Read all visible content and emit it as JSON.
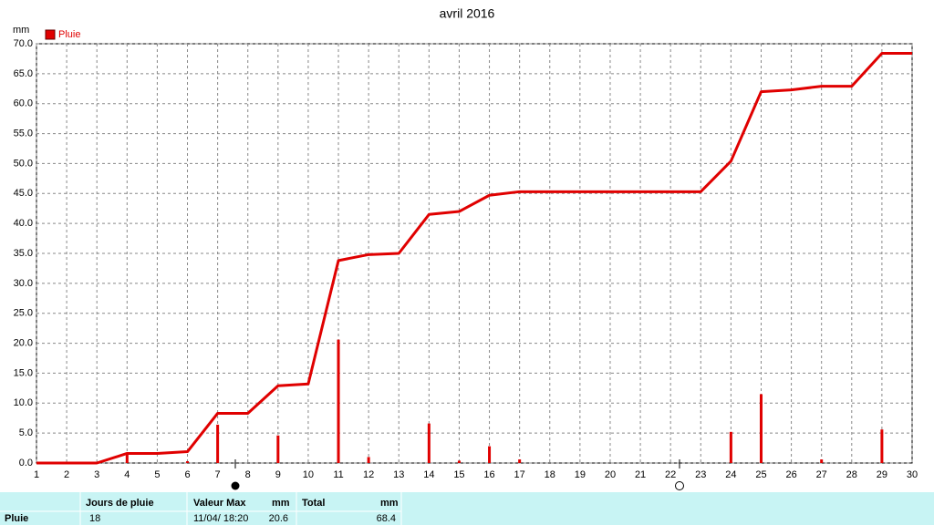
{
  "chart_data": {
    "type": "combo",
    "title": "avril 2016",
    "y_label": "mm",
    "xlim": [
      1,
      30
    ],
    "xticks": [
      1,
      2,
      3,
      4,
      5,
      6,
      7,
      8,
      9,
      10,
      11,
      12,
      13,
      14,
      15,
      16,
      17,
      18,
      19,
      20,
      21,
      22,
      23,
      24,
      25,
      26,
      27,
      28,
      29,
      30
    ],
    "ylim": [
      0,
      70
    ],
    "yticks": [
      {
        "value": 0,
        "label": "0.0"
      },
      {
        "value": 5,
        "label": "5.0"
      },
      {
        "value": 10,
        "label": "10.0"
      },
      {
        "value": 15,
        "label": "15.0"
      },
      {
        "value": 20,
        "label": "20.0"
      },
      {
        "value": 25,
        "label": "25.0"
      },
      {
        "value": 30,
        "label": "30.0"
      },
      {
        "value": 35,
        "label": "35.0"
      },
      {
        "value": 40,
        "label": "40.0"
      },
      {
        "value": 45,
        "label": "45.0"
      },
      {
        "value": 50,
        "label": "50.0"
      },
      {
        "value": 55,
        "label": "55.0"
      },
      {
        "value": 60,
        "label": "60.0"
      },
      {
        "value": 65,
        "label": "65.0"
      },
      {
        "value": 70,
        "label": "70.0"
      }
    ],
    "grid": true,
    "legend": "top-left",
    "series": [
      {
        "name": "Pluie",
        "type": "bar",
        "color": "#e00000",
        "x": [
          4,
          6,
          7,
          9,
          11,
          12,
          14,
          15,
          16,
          17,
          24,
          25,
          27,
          29
        ],
        "values": [
          1.6,
          0.3,
          6.4,
          4.6,
          20.6,
          1.0,
          6.6,
          0.4,
          2.8,
          0.6,
          5.2,
          11.5,
          0.6,
          5.6
        ]
      },
      {
        "type": "line",
        "color": "#e00000",
        "x": [
          1,
          3,
          4,
          5,
          6,
          7,
          8,
          9,
          10,
          11,
          12,
          13,
          14,
          15,
          16,
          17,
          23,
          24,
          25,
          26,
          27,
          28,
          29,
          30
        ],
        "values": [
          0,
          0,
          1.6,
          1.6,
          1.9,
          8.3,
          8.3,
          12.9,
          13.2,
          33.8,
          34.8,
          35.0,
          41.5,
          42.0,
          44.7,
          45.3,
          45.3,
          50.4,
          62.0,
          62.3,
          62.9,
          62.9,
          68.4,
          68.4
        ]
      }
    ]
  },
  "table": {
    "headers": [
      "Jours de pluie",
      "Valeur Max",
      "mm",
      "Total",
      "mm"
    ],
    "rows": [
      [
        "Pluie",
        "18",
        "11/04/ 18:20",
        "20.6",
        "68.4"
      ]
    ]
  }
}
